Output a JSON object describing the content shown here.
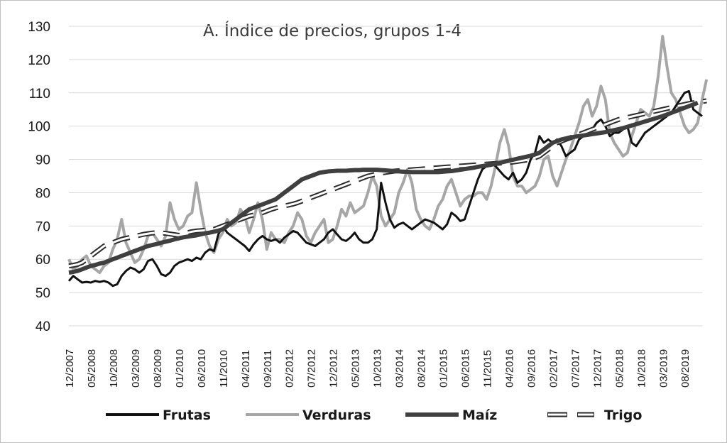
{
  "chart_data": {
    "type": "line",
    "title": "A. Índice de precios, grupos 1-4",
    "xlabel": "",
    "ylabel": "",
    "ylim": [
      40,
      130
    ],
    "yticks": [
      40,
      50,
      60,
      70,
      80,
      90,
      100,
      110,
      120,
      130
    ],
    "grid": true,
    "legend_position": "bottom",
    "x_tick_labels": [
      "12/2007",
      "05/2008",
      "10/2008",
      "03/2009",
      "08/2009",
      "01/2010",
      "06/2010",
      "11/2010",
      "04/2011",
      "09/2011",
      "02/2012",
      "07/2012",
      "12/2012",
      "05/2013",
      "10/2013",
      "03/2014",
      "08/2014",
      "01/2015",
      "06/2015",
      "11/2015",
      "04/2016",
      "09/2016",
      "02/2017",
      "07/2017",
      "12/2017",
      "05/2018",
      "10/2018",
      "03/2019",
      "08/2019"
    ],
    "x_start": "12/2007",
    "x_step_months": 1,
    "series": [
      {
        "name": "Frutas",
        "color": "#111111",
        "style": "solid",
        "values": [
          53.5,
          55,
          54,
          53,
          53.2,
          53,
          53.5,
          53.2,
          53.5,
          53,
          52,
          52.5,
          55,
          56.5,
          57.5,
          57,
          56,
          57,
          59.5,
          60,
          58,
          55.5,
          55,
          56,
          58,
          59,
          59.5,
          60,
          59.5,
          60.5,
          60,
          62,
          63,
          62.5,
          67.5,
          70,
          68,
          67,
          66,
          65,
          64,
          62.5,
          64.5,
          66,
          67,
          66,
          65.5,
          66,
          65,
          66.5,
          67.5,
          68.5,
          68,
          66.5,
          65,
          64.5,
          64,
          65,
          66,
          68,
          69,
          67.5,
          66,
          65.5,
          66.5,
          68,
          66,
          65,
          65,
          66,
          69,
          83,
          77,
          72,
          69.5,
          70.5,
          71,
          70,
          69,
          70,
          71,
          72,
          71.5,
          71,
          70,
          69,
          70.5,
          74,
          73,
          71.5,
          72,
          76,
          80,
          84,
          87,
          88,
          89,
          88,
          86.5,
          85,
          84,
          86,
          83,
          84,
          86,
          90,
          92,
          97,
          95,
          96,
          95,
          96,
          94,
          91,
          92,
          93,
          96,
          97,
          98,
          99,
          101,
          102,
          100,
          97,
          98,
          98,
          99,
          100,
          95,
          94,
          96,
          98,
          99,
          100,
          101,
          102,
          103,
          104,
          106,
          108,
          110,
          110.5,
          105,
          104,
          103
        ]
      },
      {
        "name": "Verduras",
        "color": "#a6a6a6",
        "style": "solid",
        "values": [
          60,
          57,
          58,
          60,
          61,
          58,
          57,
          56,
          58,
          59,
          63,
          66,
          72,
          65,
          62,
          59,
          60,
          63,
          67,
          68,
          66,
          64,
          67,
          77,
          72,
          69,
          70,
          73,
          74,
          83,
          75,
          68,
          64,
          62,
          66,
          68,
          72,
          70,
          71,
          75,
          73,
          68,
          72,
          77,
          72,
          63,
          68,
          66,
          66,
          65,
          68,
          70,
          74,
          72,
          67,
          65,
          68,
          70,
          72,
          65,
          66,
          70,
          75,
          73,
          77,
          74,
          75,
          76,
          80,
          85,
          82,
          73,
          70,
          72,
          74,
          80,
          83,
          87,
          83,
          75,
          72,
          70,
          69,
          72,
          76,
          78,
          82,
          84,
          80,
          76,
          78,
          79,
          79,
          80,
          80,
          78,
          82,
          88,
          95,
          99,
          94,
          85,
          82,
          82,
          80,
          81,
          82,
          85,
          90,
          91,
          85,
          82,
          86,
          90,
          93,
          97,
          101,
          106,
          108,
          103,
          106,
          112,
          108,
          98,
          95,
          93,
          91,
          92,
          97,
          101,
          105,
          104,
          103,
          106,
          115,
          127,
          118,
          110,
          108,
          104,
          100,
          98,
          99,
          101,
          108,
          114
        ]
      },
      {
        "name": "Maíz",
        "color": "#3f3f3f",
        "style": "thick",
        "values": [
          56,
          56.2,
          56.5,
          57,
          57.5,
          58,
          58.3,
          58.7,
          59,
          59.5,
          60,
          60.5,
          61,
          61.5,
          62,
          62.5,
          63,
          63.5,
          64,
          64.3,
          64.6,
          65,
          65.3,
          65.6,
          66,
          66.3,
          66.6,
          66.8,
          67,
          67.2,
          67.5,
          67.8,
          68,
          68.3,
          68.6,
          69,
          70,
          71,
          72,
          73,
          74,
          75,
          75.5,
          76,
          76.5,
          77,
          77.5,
          78,
          79,
          80,
          81,
          82,
          83,
          84,
          84.5,
          85,
          85.5,
          86,
          86.2,
          86.4,
          86.5,
          86.6,
          86.6,
          86.6,
          86.7,
          86.8,
          86.8,
          86.9,
          86.9,
          86.9,
          86.9,
          86.8,
          86.7,
          86.6,
          86.5,
          86.4,
          86.3,
          86.3,
          86.2,
          86.2,
          86.2,
          86.2,
          86.2,
          86.2,
          86.2,
          86.3,
          86.4,
          86.5,
          86.7,
          86.9,
          87.1,
          87.3,
          87.5,
          87.8,
          88,
          88.2,
          88.4,
          88.7,
          89,
          89.3,
          89.6,
          89.9,
          90.2,
          90.5,
          90.8,
          91.1,
          91.5,
          92,
          93,
          94,
          95,
          95.5,
          96,
          96.3,
          96.6,
          96.8,
          97,
          97.2,
          97.4,
          97.6,
          97.8,
          98,
          98.2,
          98.5,
          98.8,
          99.1,
          99.4,
          99.8,
          100.2,
          100.6,
          101,
          101.4,
          101.8,
          102.2,
          102.6,
          103,
          103.5,
          104,
          104.5,
          105,
          105.5,
          106,
          106.5,
          107
        ]
      },
      {
        "name": "Trigo",
        "color": "#2b2b2b",
        "style": "double",
        "values": [
          58,
          58.2,
          58.5,
          59,
          60,
          61,
          62,
          63,
          64,
          64.5,
          65,
          65.5,
          66,
          66.3,
          66.6,
          66.9,
          67.2,
          67.5,
          67.7,
          67.9,
          68,
          67.9,
          67.8,
          67.6,
          67.4,
          67.2,
          67.5,
          68,
          68.3,
          68.5,
          68.6,
          68.7,
          68.8,
          69,
          69.5,
          70,
          70.5,
          71,
          71.5,
          72,
          72.5,
          73,
          73.3,
          73.6,
          74,
          74.5,
          75,
          75.4,
          75.7,
          76,
          76.3,
          76.6,
          77,
          77.5,
          78,
          78.5,
          79,
          79.5,
          80,
          80.5,
          81,
          81.5,
          82,
          82.5,
          83,
          83.5,
          84,
          84.5,
          85,
          85.3,
          85.6,
          85.9,
          86.1,
          86.3,
          86.5,
          86.6,
          86.7,
          86.8,
          86.9,
          87,
          87.1,
          87.2,
          87.3,
          87.4,
          87.5,
          87.6,
          87.7,
          87.8,
          87.9,
          88,
          88.1,
          88.2,
          88.3,
          88.4,
          88.5,
          88.6,
          88.7,
          88.8,
          88.9,
          89,
          89.1,
          89.2,
          89.4,
          89.6,
          89.8,
          90,
          90.5,
          91,
          92,
          93,
          94,
          95,
          95.5,
          96,
          96.5,
          97,
          97.5,
          98,
          98.5,
          99,
          99.5,
          100,
          100.5,
          101,
          101.5,
          102,
          102.3,
          102.6,
          102.9,
          103.2,
          103.5,
          103.8,
          104.1,
          104.4,
          104.7,
          105,
          105.3,
          105.6,
          105.9,
          106.2,
          106.5,
          106.8,
          107,
          107.2,
          107.4,
          107.6
        ]
      }
    ],
    "legend": [
      "Frutas",
      "Verduras",
      "Maíz",
      "Trigo"
    ]
  }
}
